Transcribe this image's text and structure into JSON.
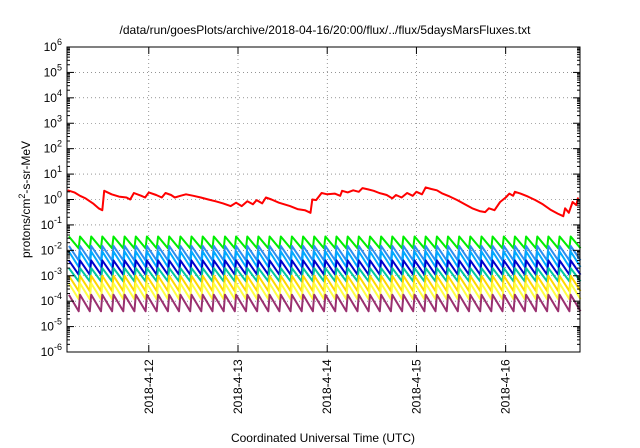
{
  "chart_data": {
    "type": "line",
    "title": "/data/run/goesPlots/archive/2018-04-16/20:00/flux/../flux/5daysMarsFluxes.txt",
    "xlabel": "Coordinated Universal Time (UTC)",
    "ylabel": "protons/cm²-s-sr-MeV",
    "yscale": "log",
    "ylim": [
      1e-06,
      1000000.0
    ],
    "xlim": [
      "2018-04-11T02:00",
      "2018-04-16T20:00"
    ],
    "grid": "dotted",
    "legend": "none",
    "x_ticks": [
      {
        "value": "2018-04-12",
        "label": "2018-4-12"
      },
      {
        "value": "2018-04-13",
        "label": "2018-4-13"
      },
      {
        "value": "2018-04-14",
        "label": "2018-4-14"
      },
      {
        "value": "2018-04-15",
        "label": "2018-4-15"
      },
      {
        "value": "2018-04-16",
        "label": "2018-4-16"
      }
    ],
    "y_ticks": [
      {
        "exp": -6,
        "label": "10",
        "sup": "-6"
      },
      {
        "exp": -5,
        "label": "10",
        "sup": "-5"
      },
      {
        "exp": -4,
        "label": "10",
        "sup": "-4"
      },
      {
        "exp": -3,
        "label": "10",
        "sup": "-3"
      },
      {
        "exp": -2,
        "label": "10",
        "sup": "-2"
      },
      {
        "exp": -1,
        "label": "10",
        "sup": "-1"
      },
      {
        "exp": 0,
        "label": "10",
        "sup": "0"
      },
      {
        "exp": 1,
        "label": "10",
        "sup": "1"
      },
      {
        "exp": 2,
        "label": "10",
        "sup": "2"
      },
      {
        "exp": 3,
        "label": "10",
        "sup": "3"
      },
      {
        "exp": 4,
        "label": "10",
        "sup": "4"
      },
      {
        "exp": 5,
        "label": "10",
        "sup": "5"
      },
      {
        "exp": 6,
        "label": "10",
        "sup": "6"
      }
    ],
    "sawtooth": {
      "period_hours": 3.0,
      "start_hours": 0.5,
      "end_hours": 137.5
    },
    "series": [
      {
        "color": "#ff0000",
        "kind": "smooth",
        "points": [
          [
            0.2,
            2.3
          ],
          [
            2,
            1.9
          ],
          [
            3.5,
            1.4
          ],
          [
            5,
            1.1
          ],
          [
            7,
            0.7
          ],
          [
            8.5,
            0.45
          ],
          [
            9.5,
            0.38
          ],
          [
            10,
            2.2
          ],
          [
            12,
            1.6
          ],
          [
            14,
            1.3
          ],
          [
            16,
            1.2
          ],
          [
            17,
            1.0
          ],
          [
            18,
            1.8
          ],
          [
            20,
            1.4
          ],
          [
            21,
            1.2
          ],
          [
            22,
            1.9
          ],
          [
            24,
            1.5
          ],
          [
            25.5,
            1.2
          ],
          [
            26.5,
            1.8
          ],
          [
            28,
            1.5
          ],
          [
            29,
            1.2
          ],
          [
            30.5,
            1.4
          ],
          [
            32,
            1.6
          ],
          [
            34,
            1.4
          ],
          [
            36,
            1.2
          ],
          [
            38,
            1.0
          ],
          [
            40,
            0.85
          ],
          [
            42,
            0.7
          ],
          [
            44,
            0.55
          ],
          [
            45.5,
            0.75
          ],
          [
            47,
            0.55
          ],
          [
            48.5,
            0.85
          ],
          [
            50,
            0.65
          ],
          [
            51,
            0.95
          ],
          [
            52.5,
            0.7
          ],
          [
            53.5,
            1.2
          ],
          [
            55,
            1.0
          ],
          [
            57,
            0.75
          ],
          [
            60,
            0.55
          ],
          [
            62,
            0.42
          ],
          [
            64,
            0.38
          ],
          [
            65.5,
            0.3
          ],
          [
            66,
            1.0
          ],
          [
            67,
            0.95
          ],
          [
            68.5,
            1.8
          ],
          [
            70,
            1.6
          ],
          [
            72,
            1.7
          ],
          [
            73.5,
            1.4
          ],
          [
            74,
            2.2
          ],
          [
            75.5,
            1.9
          ],
          [
            77,
            2.3
          ],
          [
            78.5,
            2.0
          ],
          [
            79.5,
            2.8
          ],
          [
            81,
            2.5
          ],
          [
            82.5,
            2.2
          ],
          [
            84,
            1.8
          ],
          [
            86,
            1.5
          ],
          [
            87.5,
            1.1
          ],
          [
            88.5,
            1.5
          ],
          [
            90,
            1.2
          ],
          [
            91.5,
            1.8
          ],
          [
            93,
            1.4
          ],
          [
            94,
            2.0
          ],
          [
            95.5,
            1.6
          ],
          [
            96.5,
            3.0
          ],
          [
            98,
            2.6
          ],
          [
            99.5,
            2.3
          ],
          [
            101,
            1.7
          ],
          [
            103,
            1.3
          ],
          [
            105,
            0.95
          ],
          [
            107,
            0.65
          ],
          [
            109,
            0.45
          ],
          [
            111,
            0.35
          ],
          [
            112.5,
            0.32
          ],
          [
            113.5,
            0.45
          ],
          [
            115,
            0.38
          ],
          [
            116.5,
            0.8
          ],
          [
            118,
            1.2
          ],
          [
            119,
            1.7
          ],
          [
            120,
            1.4
          ],
          [
            120.5,
            2.0
          ],
          [
            122,
            1.7
          ],
          [
            124,
            1.3
          ],
          [
            126,
            0.95
          ],
          [
            128,
            0.65
          ],
          [
            130,
            0.4
          ],
          [
            132,
            0.28
          ],
          [
            133.5,
            0.22
          ],
          [
            134,
            0.45
          ],
          [
            135,
            0.3
          ],
          [
            136,
            0.8
          ],
          [
            137,
            0.6
          ],
          [
            137.5,
            1.2
          ]
        ]
      },
      {
        "color": "#00ee00",
        "kind": "sawtooth",
        "peak": 0.035,
        "trough": 0.012
      },
      {
        "color": "#2d8ef0",
        "kind": "sawtooth",
        "peak": 0.015,
        "trough": 0.004
      },
      {
        "color": "#00aaff",
        "kind": "sawtooth",
        "peak": 0.009,
        "trough": 0.0022
      },
      {
        "color": "#0000cc",
        "kind": "sawtooth",
        "peak": 0.004,
        "trough": 0.0011
      },
      {
        "color": "#00c8a0",
        "kind": "sawtooth",
        "peak": 0.002,
        "trough": 0.0006
      },
      {
        "color": "#ffd800",
        "kind": "sawtooth",
        "peak": 0.001,
        "trough": 0.00025
      },
      {
        "color": "#ffff40",
        "kind": "sawtooth",
        "peak": 0.0005,
        "trough": 0.00012
      },
      {
        "color": "#9a3070",
        "kind": "sawtooth",
        "peak": 0.00018,
        "trough": 4e-05
      }
    ]
  }
}
